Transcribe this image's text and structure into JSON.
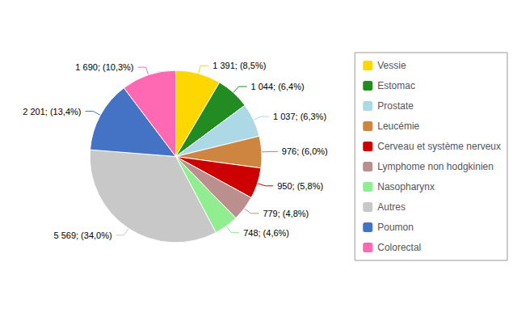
{
  "chart_data": {
    "type": "pie",
    "categories": [
      "Vessie",
      "Estomac",
      "Prostate",
      "Leucémie",
      "Cerveau et système nerveux",
      "Lymphome non hodgkinien",
      "Nasopharynx",
      "Autres",
      "Poumon",
      "Colorectal"
    ],
    "values": [
      1391,
      1044,
      1037,
      976,
      950,
      779,
      748,
      5569,
      2201,
      1690
    ],
    "value_labels": [
      "1 391; (8,5%)",
      "1 044; (6,4%)",
      "1 037; (6,3%)",
      "976; (6,0%)",
      "950; (5,8%)",
      "779; (4,8%)",
      "748; (4,6%)",
      "5 569; (34,0%)",
      "2 201; (13,4%)",
      "1 690; (10,3%)"
    ],
    "colors": [
      "#FFD700",
      "#228B22",
      "#ADD8E6",
      "#CD853F",
      "#CC0000",
      "#BC8F8F",
      "#90EE90",
      "#C8C8C8",
      "#4472C4",
      "#FF69B4"
    ],
    "legend": "right",
    "data_labels": true
  }
}
